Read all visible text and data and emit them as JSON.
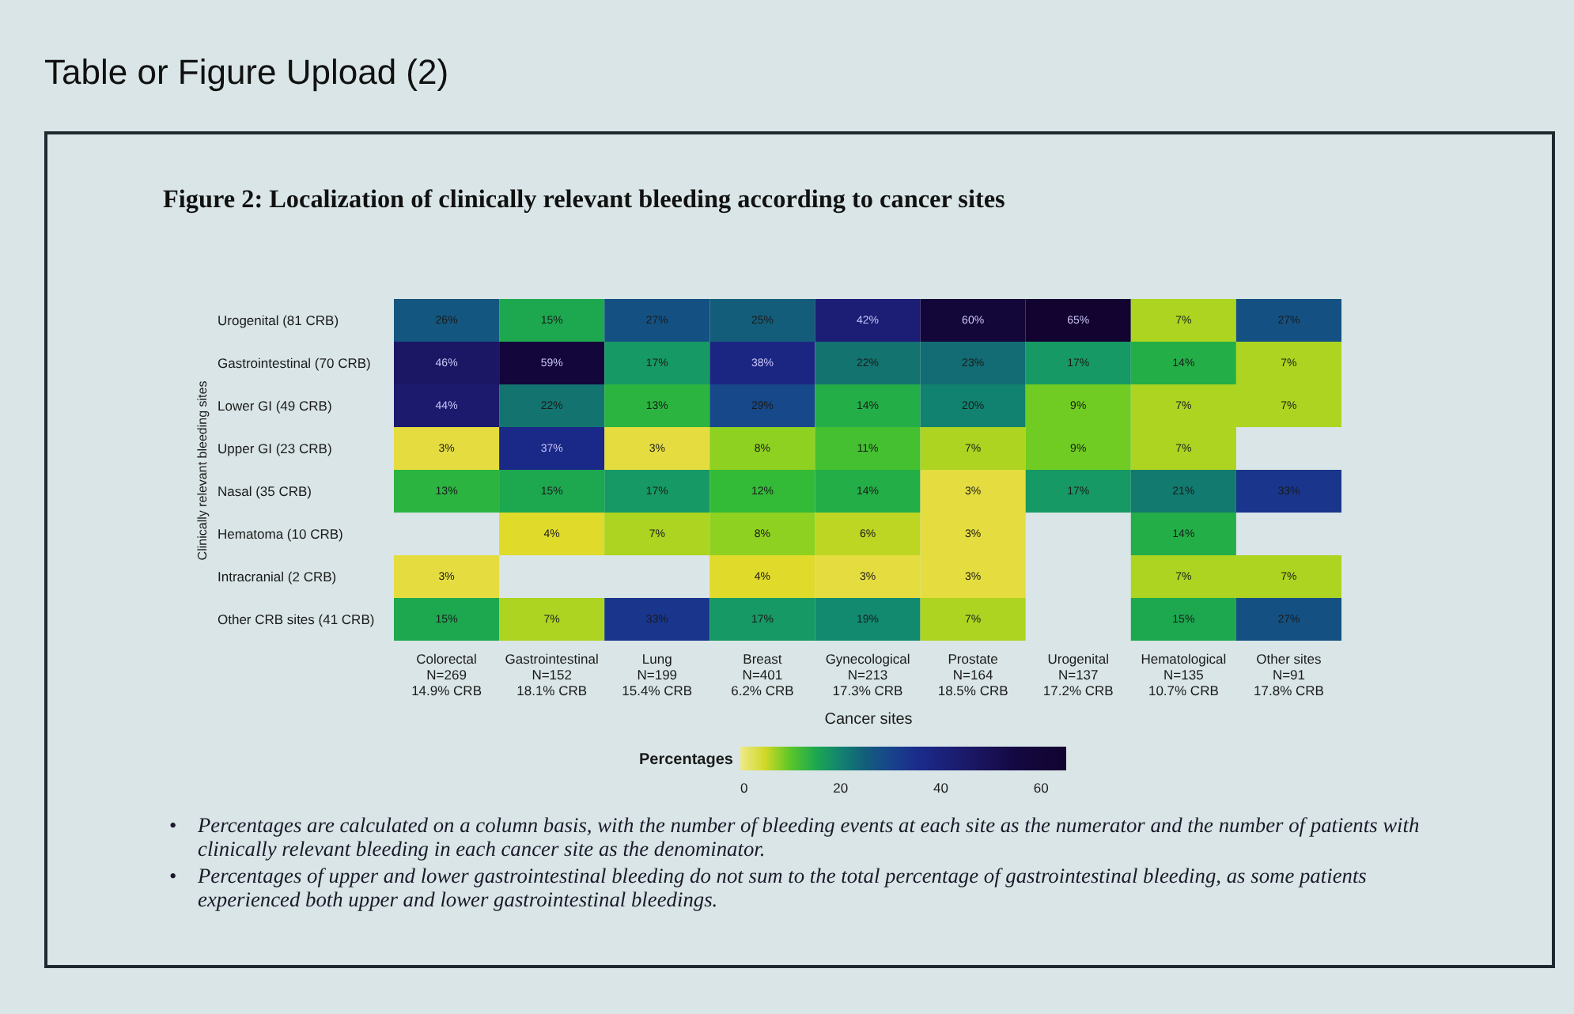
{
  "chart_data": {
    "type": "heatmap",
    "title": "Table or Figure Upload (2)",
    "subtitle": "Figure 2: Localization of clinically relevant bleeding according to cancer sites",
    "xlabel": "Cancer sites",
    "ylabel": "Clinically relevant bleeding sites",
    "clabel": "Percentages",
    "categories": [
      "Colorectal\nN=269\n14.9% CRB",
      "Gastrointestinal\nN=152\n18.1% CRB",
      "Lung\nN=199\n15.4% CRB",
      "Breast\nN=401\n6.2% CRB",
      "Gynecological\nN=213\n17.3% CRB",
      "Prostate\nN=164\n18.5% CRB",
      "Urogenital\nN=137\n17.2% CRB",
      "Hematological\nN=135\n10.7% CRB",
      "Other sites\nN=91\n17.8% CRB"
    ],
    "y_categories": [
      "Urogenital (81 CRB)",
      "Gastrointestinal (70 CRB)",
      "Lower GI (49 CRB)",
      "Upper GI (23 CRB)",
      "Nasal (35 CRB)",
      "Hematoma (10 CRB)",
      "Intracranial (2 CRB)",
      "Other CRB sites (41 CRB)"
    ],
    "cells": [
      [
        26,
        15,
        27,
        25,
        42,
        60,
        65,
        7,
        27
      ],
      [
        46,
        59,
        17,
        38,
        22,
        23,
        17,
        14,
        7
      ],
      [
        44,
        22,
        13,
        29,
        14,
        20,
        9,
        7,
        7
      ],
      [
        3,
        37,
        3,
        8,
        11,
        7,
        9,
        7,
        null
      ],
      [
        13,
        15,
        17,
        12,
        14,
        3,
        17,
        21,
        33
      ],
      [
        null,
        4,
        7,
        8,
        6,
        3,
        null,
        14,
        null
      ],
      [
        3,
        null,
        null,
        4,
        3,
        3,
        null,
        7,
        7
      ],
      [
        15,
        7,
        33,
        17,
        19,
        7,
        null,
        15,
        27
      ]
    ],
    "cell_labels": [
      [
        "26%",
        "15%",
        "27%",
        "25%",
        "42%",
        "60%",
        "65%",
        "7%",
        "27%"
      ],
      [
        "46%",
        "59%",
        "17%",
        "38%",
        "22%",
        "23%",
        "17%",
        "14%",
        "7%"
      ],
      [
        "44%",
        "22%",
        "13%",
        "29%",
        "14%",
        "20%",
        "9%",
        "7%",
        "7%"
      ],
      [
        "3%",
        "37%",
        "3%",
        "8%",
        "11%",
        "7%",
        "9%",
        "7%",
        null
      ],
      [
        "13%",
        "15%",
        "17%",
        "12%",
        "14%",
        "3%",
        "17%",
        "21%",
        "33%"
      ],
      [
        null,
        "4%",
        "7%",
        "8%",
        "6%",
        "3%",
        null,
        "14%",
        null
      ],
      [
        "3%",
        null,
        null,
        "4%",
        "3%",
        "3%",
        null,
        "7%",
        "7%"
      ],
      [
        "15%",
        "7%",
        "33%",
        "17%",
        "19%",
        "7%",
        null,
        "15%",
        "27%"
      ]
    ],
    "clim": [
      0,
      65
    ],
    "cticks": [
      0,
      20,
      40,
      60
    ],
    "annotations": [
      "• Percentages are calculated on a column basis, with the number of bleeding events at each site as the numerator and the number of patients with clinically relevant bleeding in each cancer site as the denominator.",
      "• Percentages of upper and lower gastrointestinal bleeding do not sum to the total percentage of gastrointestinal bleeding, as some patients experienced both upper and lower gastrointestinal bleedings."
    ]
  }
}
